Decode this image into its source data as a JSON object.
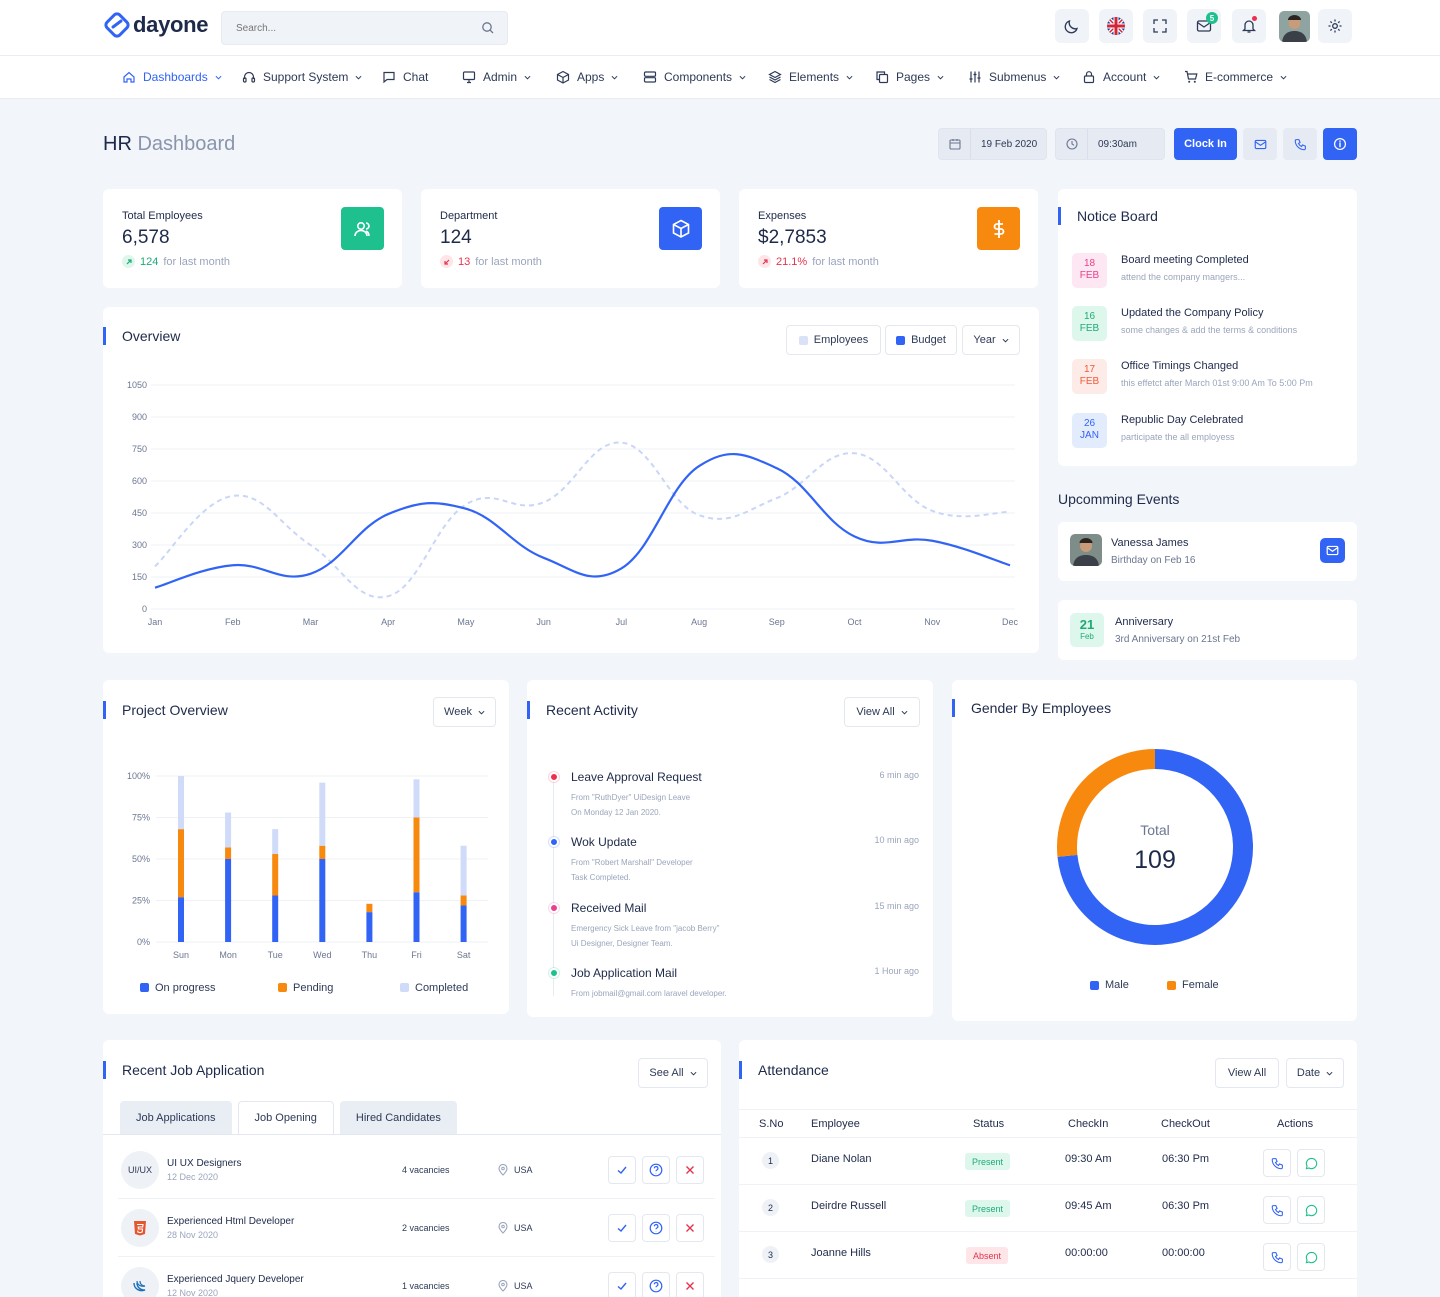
{
  "header": {
    "logo_text": "dayone",
    "search_placeholder": "Search...",
    "mail_badge": "5"
  },
  "nav": [
    {
      "label": "Dashboards",
      "icon": "home-icon",
      "active": true,
      "caret": true
    },
    {
      "label": "Support System",
      "icon": "headset-icon",
      "caret": true
    },
    {
      "label": "Chat",
      "icon": "chat-icon",
      "caret": false
    },
    {
      "label": "Admin",
      "icon": "monitor-icon",
      "caret": true
    },
    {
      "label": "Apps",
      "icon": "box-icon",
      "caret": true
    },
    {
      "label": "Components",
      "icon": "server-icon",
      "caret": true
    },
    {
      "label": "Elements",
      "icon": "layers-icon",
      "caret": true
    },
    {
      "label": "Pages",
      "icon": "copy-icon",
      "caret": true
    },
    {
      "label": "Submenus",
      "icon": "sliders-icon",
      "caret": true
    },
    {
      "label": "Account",
      "icon": "lock-icon",
      "caret": true
    },
    {
      "label": "E-commerce",
      "icon": "cart-icon",
      "caret": true
    }
  ],
  "page": {
    "title_main": "HR",
    "title_sub": "Dashboard",
    "date": "19 Feb 2020",
    "time": "09:30am",
    "clock_in": "Clock In"
  },
  "stats": [
    {
      "label": "Total Employees",
      "value": "6,578",
      "change": "124",
      "suffix": "for last month",
      "trend": "up",
      "color": "#1ec08d",
      "icon": "users-icon"
    },
    {
      "label": "Department",
      "value": "124",
      "change": "13",
      "suffix": "for last month",
      "trend": "down",
      "color": "#3163f5",
      "icon": "cube-icon"
    },
    {
      "label": "Expenses",
      "value": "$2,7853",
      "change": "21.1%",
      "suffix": "for last month",
      "trend": "up-red",
      "color": "#f7890e",
      "icon": "dollar-icon"
    }
  ],
  "overview": {
    "title": "Overview",
    "legend_employees": "Employees",
    "legend_budget": "Budget",
    "period": "Year"
  },
  "chart_data": [
    {
      "type": "line",
      "title": "Overview",
      "categories": [
        "Jan",
        "Feb",
        "Mar",
        "Apr",
        "May",
        "Jun",
        "Jul",
        "Aug",
        "Sep",
        "Oct",
        "Nov",
        "Dec"
      ],
      "yticks": [
        0,
        150,
        300,
        450,
        600,
        750,
        900,
        1050
      ],
      "ylim": [
        0,
        1050
      ],
      "series": [
        {
          "name": "Budget",
          "color": "#3163f5",
          "style": "solid",
          "values": [
            100,
            205,
            165,
            445,
            470,
            240,
            190,
            670,
            660,
            340,
            320,
            205
          ]
        },
        {
          "name": "Employees",
          "color": "#c9d6f7",
          "style": "dashed",
          "values": [
            200,
            530,
            300,
            60,
            490,
            500,
            780,
            440,
            520,
            730,
            460,
            455
          ]
        }
      ]
    },
    {
      "type": "bar",
      "title": "Project Overview",
      "categories": [
        "Sun",
        "Mon",
        "Tue",
        "Wed",
        "Thu",
        "Fri",
        "Sat"
      ],
      "yticks": [
        "0%",
        "25%",
        "50%",
        "75%",
        "100%"
      ],
      "ylim": [
        0,
        100
      ],
      "stacked": true,
      "series": [
        {
          "name": "On progress",
          "color": "#3163f5",
          "values": [
            27,
            50,
            28,
            50,
            18,
            30,
            22
          ]
        },
        {
          "name": "Pending",
          "color": "#f7890e",
          "values": [
            41,
            7,
            25,
            8,
            5,
            45,
            6
          ]
        },
        {
          "name": "Completed",
          "color": "#cfdbf9",
          "values": [
            32,
            21,
            15,
            38,
            0,
            23,
            30
          ]
        }
      ]
    },
    {
      "type": "pie",
      "title": "Gender By Employees",
      "center_label": "Total",
      "center_value": "109",
      "series": [
        {
          "name": "Male",
          "color": "#3163f5",
          "value": 80
        },
        {
          "name": "Female",
          "color": "#f7890e",
          "value": 29
        }
      ]
    }
  ],
  "notice_board": {
    "title": "Notice Board",
    "items": [
      {
        "day": "18",
        "month": "FEB",
        "title": "Board meeting Completed",
        "desc": "attend the company mangers...",
        "bg": "#fde7f2",
        "fg": "#e8408e"
      },
      {
        "day": "16",
        "month": "FEB",
        "title": "Updated the Company Policy",
        "desc": "some changes & add the terms & conditions",
        "bg": "#def7ec",
        "fg": "#1eab76"
      },
      {
        "day": "17",
        "month": "FEB",
        "title": "Office Timings Changed",
        "desc": "this effetct after March 01st 9:00 Am To 5:00 Pm",
        "bg": "#fdebe7",
        "fg": "#ef5b3b"
      },
      {
        "day": "26",
        "month": "JAN",
        "title": "Republic Day Celebrated",
        "desc": "participate the all employess",
        "bg": "#e3ecfd",
        "fg": "#3163f5"
      }
    ]
  },
  "events": {
    "title": "Upcomming Events",
    "birthday": {
      "name": "Vanessa James",
      "sub": "Birthday on Feb 16"
    },
    "anniversary": {
      "day": "21",
      "month": "Feb",
      "title": "Anniversary",
      "sub": "3rd Anniversary on 21st Feb"
    }
  },
  "project_overview": {
    "title": "Project Overview",
    "period": "Week"
  },
  "recent_activity": {
    "title": "Recent Activity",
    "view_all": "View All",
    "items": [
      {
        "title": "Leave Approval Request",
        "line1": "From \"RuthDyer\" UiDesign Leave",
        "line2": "On Monday 12 Jan 2020.",
        "time": "6 min ago",
        "color": "#ef2d4c"
      },
      {
        "title": "Wok Update",
        "line1": "From \"Robert Marshall\" Developer",
        "line2": "Task Completed.",
        "time": "10 min ago",
        "color": "#3163f5"
      },
      {
        "title": "Received Mail",
        "line1": "Emergency Sick Leave from \"jacob Berry\"",
        "line2": "Ui Designer, Designer Team.",
        "time": "15 min ago",
        "color": "#e8408e"
      },
      {
        "title": "Job Application Mail",
        "line1": "From jobmail@gmail.com laravel developer.",
        "line2": "",
        "time": "1 Hour ago",
        "color": "#1ec08d"
      }
    ]
  },
  "gender": {
    "title": "Gender By Employees",
    "male": "Male",
    "female": "Female"
  },
  "jobs": {
    "title": "Recent Job Application",
    "see_all": "See All",
    "tabs": [
      "Job Applications",
      "Job Opening",
      "Hired Candidates"
    ],
    "rows": [
      {
        "icon_text": "UI/UX",
        "title": "UI UX Designers",
        "date": "12 Dec 2020",
        "vacancies": "4 vacancies",
        "location": "USA"
      },
      {
        "icon_text": "",
        "title": "Experienced Html Developer",
        "date": "28 Nov 2020",
        "vacancies": "2 vacancies",
        "location": "USA"
      },
      {
        "icon_text": "",
        "title": "Experienced Jquery Developer",
        "date": "12 Nov 2020",
        "vacancies": "1 vacancies",
        "location": "USA"
      }
    ]
  },
  "attendance": {
    "title": "Attendance",
    "view_all": "View All",
    "date": "Date",
    "headers": [
      "S.No",
      "Employee",
      "Status",
      "CheckIn",
      "CheckOut",
      "Actions"
    ],
    "rows": [
      {
        "no": "1",
        "name": "Diane Nolan",
        "status": "Present",
        "in": "09:30 Am",
        "out": "06:30 Pm"
      },
      {
        "no": "2",
        "name": "Deirdre Russell",
        "status": "Present",
        "in": "09:45 Am",
        "out": "06:30 Pm"
      },
      {
        "no": "3",
        "name": "Joanne Hills",
        "status": "Absent",
        "in": "00:00:00",
        "out": "00:00:00"
      }
    ]
  }
}
